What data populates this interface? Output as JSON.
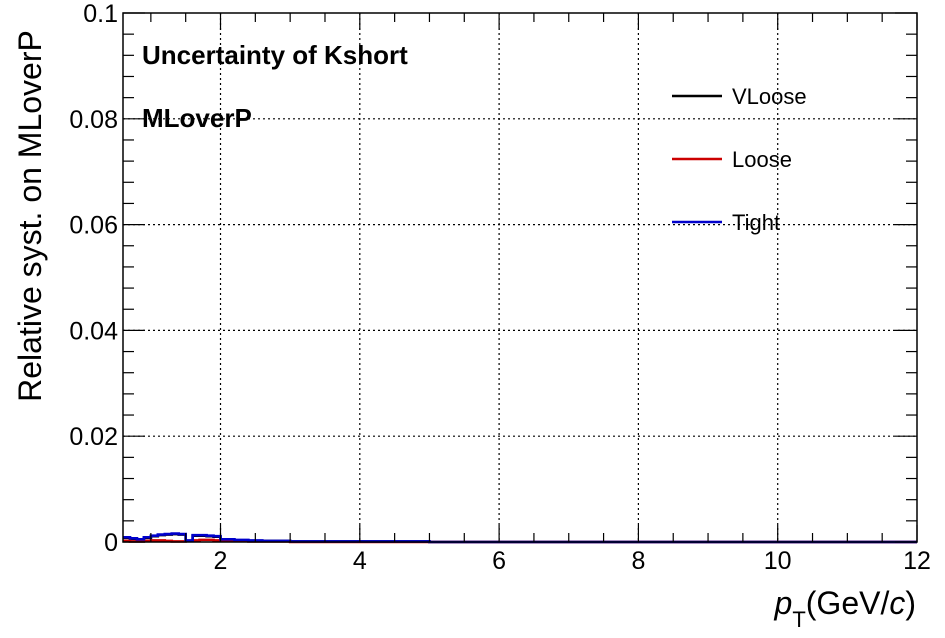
{
  "chart_data": {
    "type": "line",
    "step": true,
    "title": "",
    "xlabel": {
      "main": "p",
      "sub": "T",
      "unit_open": "(GeV/",
      "unit_var": "c",
      "unit_close": ")"
    },
    "ylabel": "Relative syst. on MLoverP",
    "xlim": [
      0.6,
      12
    ],
    "ylim": [
      0,
      0.1
    ],
    "xticks": [
      2,
      4,
      6,
      8,
      10,
      12
    ],
    "xtick_labels": [
      "2",
      "4",
      "6",
      "8",
      "10",
      "12"
    ],
    "yticks": [
      0,
      0.02,
      0.04,
      0.06,
      0.08,
      0.1
    ],
    "ytick_labels": [
      "0",
      "0.02",
      "0.04",
      "0.06",
      "0.08",
      "0.1"
    ],
    "grid": true,
    "legend_position": "top-right",
    "annotations": [
      "Uncertainty of Kshort",
      "MLoverP"
    ],
    "series": [
      {
        "name": "VLoose",
        "color": "#000000",
        "bins": [
          0.6,
          0.7,
          0.8,
          0.9,
          1.0,
          1.1,
          1.2,
          1.3,
          1.4,
          1.5,
          1.6,
          1.7,
          1.8,
          1.9,
          2.0,
          2.2,
          2.4,
          2.6,
          3.0,
          3.5,
          4.0,
          5.0,
          6.0,
          8.0,
          10.0,
          12.0
        ],
        "values": [
          0.0008,
          0.0006,
          0.0004,
          0.0008,
          0.0011,
          0.0013,
          0.0014,
          0.0015,
          0.0014,
          0.0002,
          0.0012,
          0.0012,
          0.0011,
          0.001,
          0.0004,
          0.0003,
          0.0002,
          0.0002,
          0.0001,
          0.0001,
          0.0001,
          0.0,
          0.0,
          0.0,
          0.0
        ]
      },
      {
        "name": "Loose",
        "color": "#cc0000",
        "bins": [
          0.6,
          0.7,
          0.8,
          0.9,
          1.0,
          1.1,
          1.2,
          1.3,
          1.4,
          1.5,
          1.6,
          1.7,
          1.8,
          1.9,
          2.0,
          2.2,
          2.4,
          2.6,
          3.0,
          3.5,
          4.0,
          5.0,
          6.0,
          8.0,
          10.0,
          12.0
        ],
        "values": [
          0.0002,
          0.0001,
          0.0001,
          0.0002,
          0.0003,
          0.0003,
          0.0002,
          0.0001,
          0.0001,
          0.0002,
          0.0003,
          0.0004,
          0.0004,
          0.0003,
          0.0002,
          0.0002,
          0.0001,
          0.0001,
          0.0,
          0.0,
          0.0,
          0.0,
          0.0,
          0.0,
          0.0
        ]
      },
      {
        "name": "Tight",
        "color": "#0000cc",
        "bins": [
          0.6,
          0.7,
          0.8,
          0.9,
          1.0,
          1.1,
          1.2,
          1.3,
          1.4,
          1.5,
          1.6,
          1.7,
          1.8,
          1.9,
          2.0,
          2.2,
          2.4,
          2.6,
          3.0,
          3.5,
          4.0,
          5.0,
          6.0,
          8.0,
          10.0,
          12.0
        ],
        "values": [
          0.0009,
          0.0007,
          0.0005,
          0.0009,
          0.0012,
          0.0014,
          0.0015,
          0.0016,
          0.0015,
          0.0003,
          0.0013,
          0.0013,
          0.0012,
          0.0011,
          0.0005,
          0.0004,
          0.0003,
          0.0002,
          0.0001,
          0.0001,
          0.0001,
          0.0,
          0.0,
          0.0,
          0.0
        ]
      }
    ]
  }
}
